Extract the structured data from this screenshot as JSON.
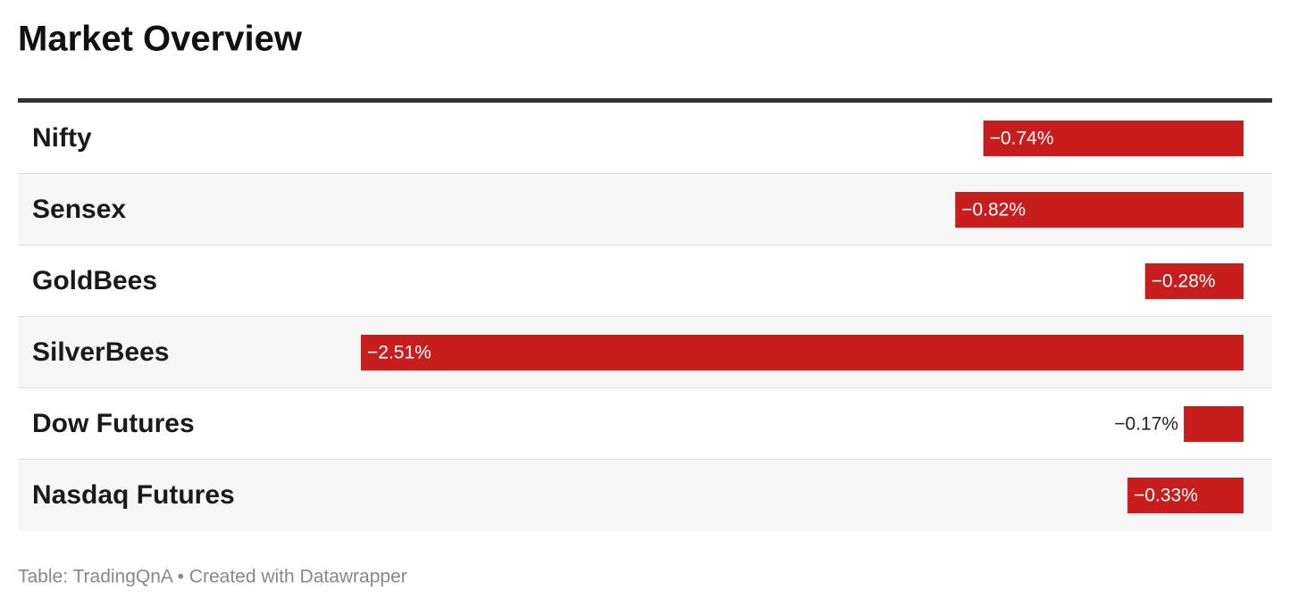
{
  "title": "Market Overview",
  "table": {
    "type": "bar",
    "color": "#c71e1d",
    "rows": [
      {
        "name": "Nifty",
        "value": -0.74,
        "value_label": "−0.74%"
      },
      {
        "name": "Sensex",
        "value": -0.82,
        "value_label": "−0.82%"
      },
      {
        "name": "GoldBees",
        "value": -0.28,
        "value_label": "−0.28%"
      },
      {
        "name": "SilverBees",
        "value": -2.51,
        "value_label": "−2.51%"
      },
      {
        "name": "Dow Futures",
        "value": -0.17,
        "value_label": "−0.17%"
      },
      {
        "name": "Nasdaq Futures",
        "value": -0.33,
        "value_label": "−0.33%"
      }
    ]
  },
  "footer": "Table: TradingQnA • Created with Datawrapper"
}
